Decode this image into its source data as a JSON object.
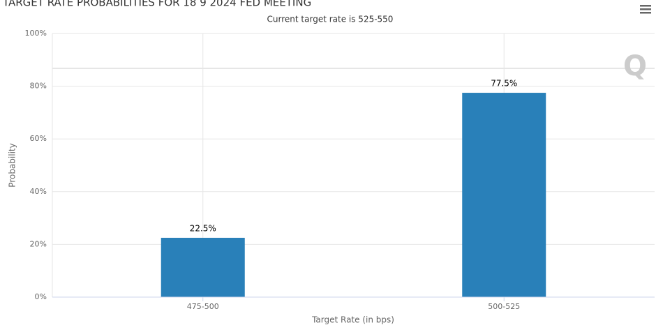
{
  "chart_data": {
    "type": "bar",
    "title": "TARGET RATE PROBABILITIES FOR 18 9 2024 FED MEETING",
    "subtitle": "Current target rate is 525-550",
    "x_label": "Target Rate (in bps)",
    "y_label": "Probability",
    "categories": [
      "475-500",
      "500-525"
    ],
    "values": [
      22.5,
      77.5
    ],
    "value_labels": [
      "22.5%",
      "77.5%"
    ],
    "color": "#2980b9",
    "ylim": [
      0,
      100
    ],
    "yticks": [
      {
        "value": 0,
        "label": "0%"
      },
      {
        "value": 20,
        "label": "20%"
      },
      {
        "value": 40,
        "label": "40%"
      },
      {
        "value": 60,
        "label": "60%"
      },
      {
        "value": 80,
        "label": "80%"
      },
      {
        "value": 100,
        "label": "100%"
      }
    ],
    "grid": true
  }
}
